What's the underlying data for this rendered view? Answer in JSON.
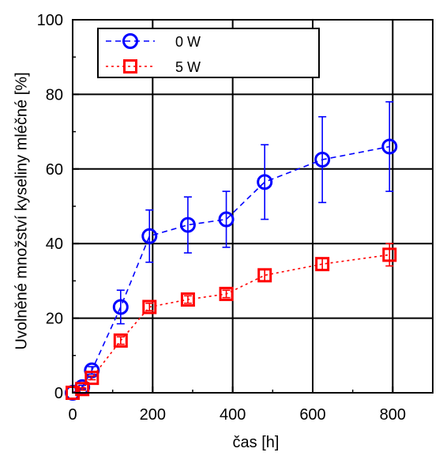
{
  "chart_data": {
    "type": "scatter",
    "title": "",
    "xlabel": "čas  [h]",
    "ylabel": "Uvolněné množství kyseliny mléčné [%]",
    "xlim": [
      0,
      900
    ],
    "ylim": [
      0,
      100
    ],
    "grid": true,
    "legend": "top-left",
    "x_ticks": [
      0,
      200,
      400,
      600,
      800
    ],
    "y_ticks": [
      0,
      20,
      40,
      60,
      80,
      100
    ],
    "series": [
      {
        "name": "0 W",
        "color": "#0000ff",
        "marker": "circle",
        "line": "dashed",
        "x": [
          0,
          24,
          48,
          120,
          192,
          288,
          384,
          480,
          624,
          792
        ],
        "y": [
          0.0,
          1.5,
          6.0,
          23.0,
          42.0,
          45.0,
          46.5,
          56.5,
          62.5,
          66.0
        ],
        "error": [
          0.0,
          0.5,
          1.0,
          4.5,
          7.0,
          7.5,
          7.5,
          10.0,
          11.5,
          12.0
        ]
      },
      {
        "name": "5 W",
        "color": "#ff0000",
        "marker": "square",
        "line": "dotted",
        "x": [
          0,
          24,
          48,
          120,
          192,
          288,
          384,
          480,
          624,
          792
        ],
        "y": [
          0.0,
          1.0,
          4.0,
          14.0,
          23.0,
          25.0,
          26.5,
          31.5,
          34.5,
          37.0
        ],
        "error": [
          0.0,
          0.3,
          0.5,
          1.0,
          1.0,
          1.0,
          1.0,
          1.5,
          1.5,
          3.0
        ]
      }
    ]
  }
}
